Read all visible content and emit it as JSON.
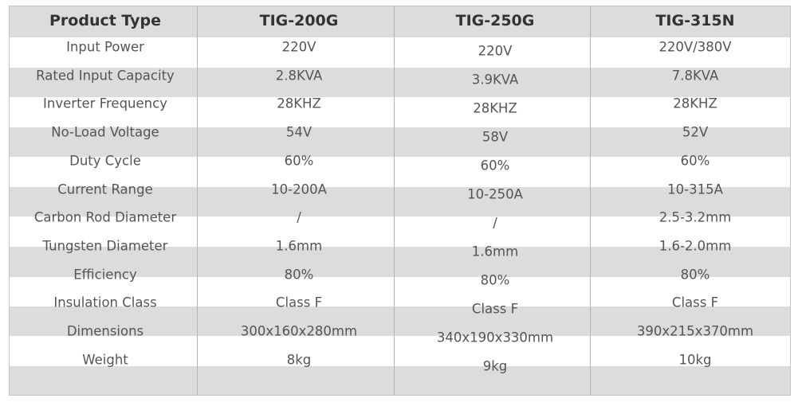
{
  "table": {
    "header": [
      "Product Type",
      "TIG-200G",
      "TIG-250G",
      "TIG-315N"
    ],
    "rows": [
      [
        "Input Power",
        "220V",
        "220V",
        "220V/380V"
      ],
      [
        "Rated Input Capacity",
        "2.8KVA",
        "3.9KVA",
        "7.8KVA"
      ],
      [
        "Inverter Frequency",
        "28KHZ",
        "28KHZ",
        "28KHZ"
      ],
      [
        "No-Load Voltage",
        "54V",
        "58V",
        "52V"
      ],
      [
        "Duty Cycle",
        "60%",
        "60%",
        "60%"
      ],
      [
        "Current Range",
        "10-200A",
        "10-250A",
        "10-315A"
      ],
      [
        "Carbon Rod Diameter",
        "/",
        "/",
        "2.5-3.2mm"
      ],
      [
        "Tungsten Diameter",
        "1.6mm",
        "1.6mm",
        "1.6-2.0mm"
      ],
      [
        "Efficiency",
        "80%",
        "80%",
        "80%"
      ],
      [
        "Insulation Class",
        "Class F",
        "Class F",
        "Class F"
      ],
      [
        "Dimensions",
        "300x160x280mm",
        "340x190x330mm",
        "390x215x370mm"
      ],
      [
        "Weight",
        "8kg",
        "9kg",
        "10kg"
      ]
    ]
  }
}
